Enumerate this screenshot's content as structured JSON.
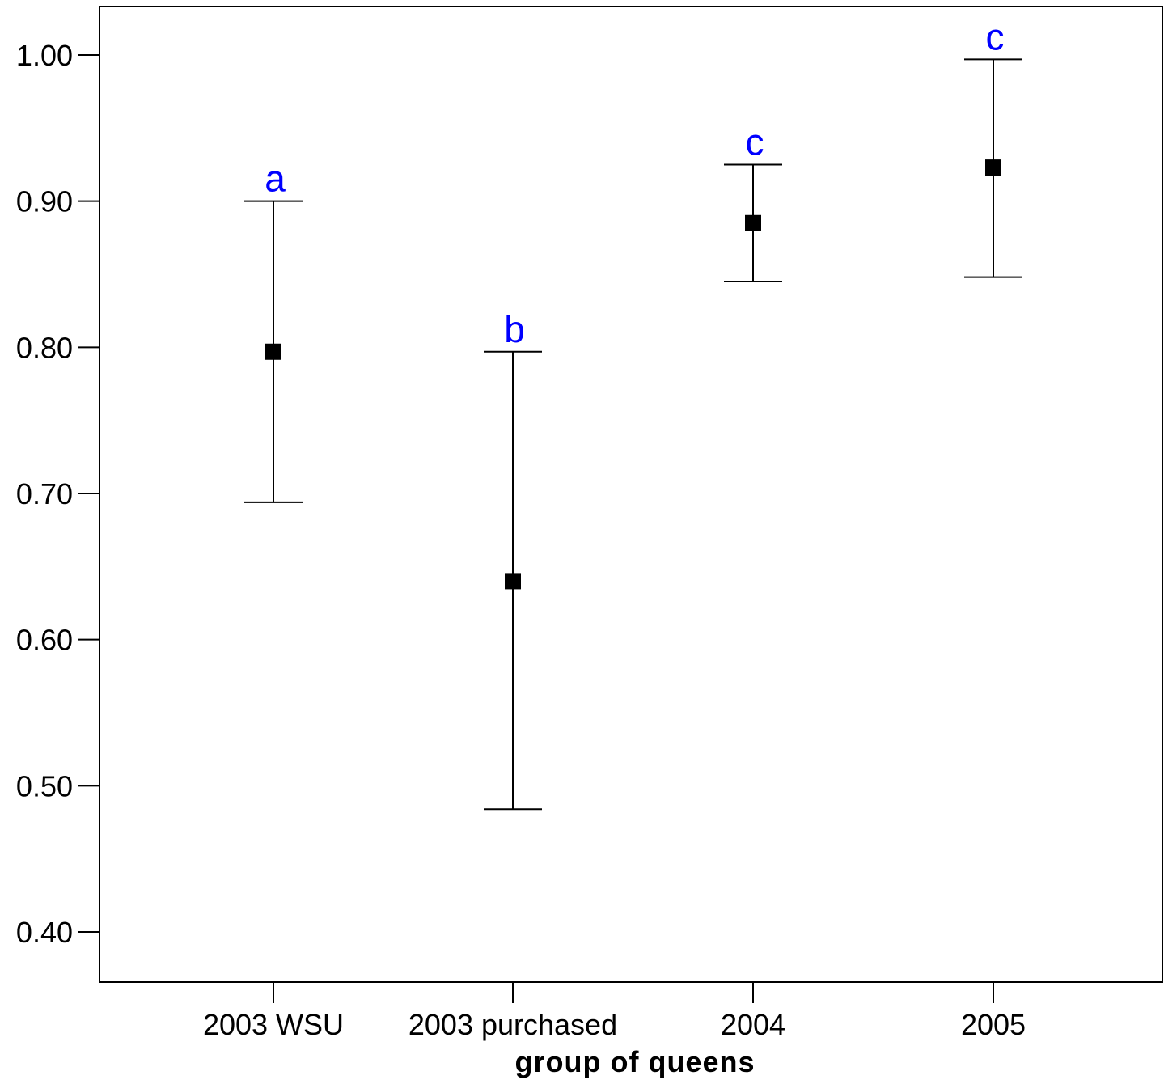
{
  "chart_data": {
    "type": "scatter",
    "title": "",
    "xlabel": "group of queens",
    "ylabel": "",
    "categories": [
      "2003 WSU",
      "2003 purchased",
      "2004",
      "2005"
    ],
    "ylim": [
      0.35,
      1.035
    ],
    "yticks": [
      "0.40",
      "0.50",
      "0.60",
      "0.70",
      "0.80",
      "0.90",
      "1.00"
    ],
    "grid": false,
    "legend": "none",
    "points": [
      {
        "category": "2003 WSU",
        "value": 0.797,
        "lower": 0.694,
        "upper": 0.9,
        "group_letter": "a"
      },
      {
        "category": "2003 purchased",
        "value": 0.64,
        "lower": 0.484,
        "upper": 0.797,
        "group_letter": "b"
      },
      {
        "category": "2004",
        "value": 0.885,
        "lower": 0.845,
        "upper": 0.925,
        "group_letter": "c"
      },
      {
        "category": "2005",
        "value": 0.923,
        "lower": 0.848,
        "upper": 0.997,
        "group_letter": "c"
      }
    ],
    "colors": {
      "marker": "#000000",
      "error_bar": "#000000",
      "group_letter": "#0000ff",
      "axis": "#000000"
    }
  }
}
